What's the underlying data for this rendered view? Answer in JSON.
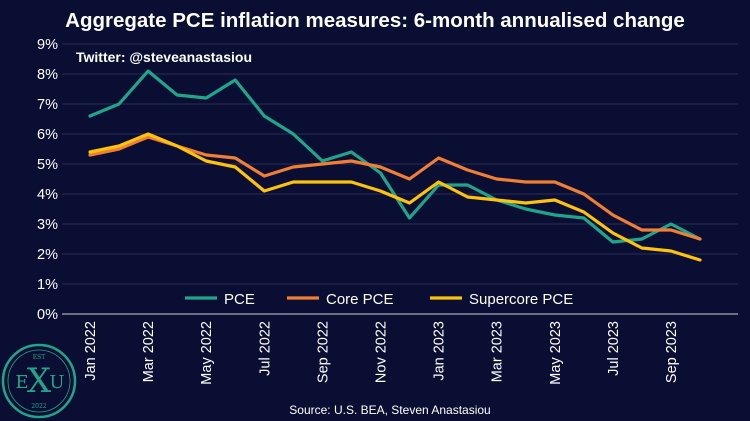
{
  "colors": {
    "background": "#0a0e33",
    "text": "#ffffff",
    "grid": "#2b2f55",
    "logo": "#1fa58a"
  },
  "chart_data": {
    "type": "line",
    "title": "Aggregate PCE inflation measures: 6-month annualised change",
    "watermark": "Twitter: @steveanastasiou",
    "source": "Source: U.S. BEA, Steven Anastasiou",
    "ylim": [
      0,
      9
    ],
    "yticks": [
      0,
      1,
      2,
      3,
      4,
      5,
      6,
      7,
      8,
      9
    ],
    "ytick_labels": [
      "0%",
      "1%",
      "2%",
      "3%",
      "4%",
      "5%",
      "6%",
      "7%",
      "8%",
      "9%"
    ],
    "x": [
      "Jan 2022",
      "Feb 2022",
      "Mar 2022",
      "Apr 2022",
      "May 2022",
      "Jun 2022",
      "Jul 2022",
      "Aug 2022",
      "Sep 2022",
      "Oct 2022",
      "Nov 2022",
      "Dec 2022",
      "Jan 2023",
      "Feb 2023",
      "Mar 2023",
      "Apr 2023",
      "May 2023",
      "Jun 2023",
      "Jul 2023",
      "Aug 2023",
      "Sep 2023",
      "Oct 2023"
    ],
    "xtick_labels": [
      {
        "index": 0,
        "label": "Jan 2022"
      },
      {
        "index": 2,
        "label": "Mar 2022"
      },
      {
        "index": 4,
        "label": "May 2022"
      },
      {
        "index": 6,
        "label": "Jul 2022"
      },
      {
        "index": 8,
        "label": "Sep 2022"
      },
      {
        "index": 10,
        "label": "Nov 2022"
      },
      {
        "index": 12,
        "label": "Jan 2023"
      },
      {
        "index": 14,
        "label": "Mar 2023"
      },
      {
        "index": 16,
        "label": "May 2023"
      },
      {
        "index": 18,
        "label": "Jul 2023"
      },
      {
        "index": 20,
        "label": "Sep 2023"
      }
    ],
    "legend_position": "bottom-center",
    "series": [
      {
        "name": "PCE",
        "color": "#1fa58a",
        "values": [
          6.6,
          7.0,
          8.1,
          7.3,
          7.2,
          7.8,
          6.6,
          6.0,
          5.1,
          5.4,
          4.7,
          3.2,
          4.3,
          4.3,
          3.8,
          3.5,
          3.3,
          3.2,
          2.4,
          2.5,
          3.0,
          2.5
        ]
      },
      {
        "name": "Core PCE",
        "color": "#f07f35",
        "values": [
          5.3,
          5.5,
          5.9,
          5.6,
          5.3,
          5.2,
          4.6,
          4.9,
          5.0,
          5.1,
          4.9,
          4.5,
          5.2,
          4.8,
          4.5,
          4.4,
          4.4,
          4.0,
          3.3,
          2.8,
          2.8,
          2.5
        ]
      },
      {
        "name": "Supercore PCE",
        "color": "#ffc20e",
        "values": [
          5.4,
          5.6,
          6.0,
          5.6,
          5.1,
          4.9,
          4.1,
          4.4,
          4.4,
          4.4,
          4.1,
          3.7,
          4.4,
          3.9,
          3.8,
          3.7,
          3.8,
          3.4,
          2.7,
          2.2,
          2.1,
          1.8
        ]
      }
    ]
  },
  "logo": {
    "top_text": "EST",
    "left_letter": "E",
    "center_letter": "X",
    "right_letter": "U",
    "year": "2022"
  }
}
